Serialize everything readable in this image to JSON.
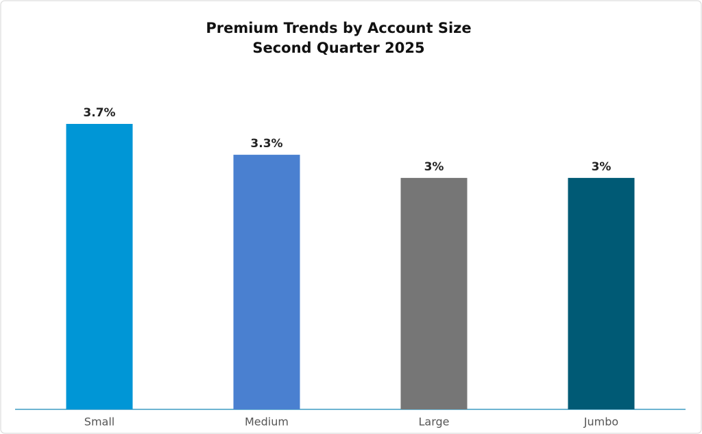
{
  "chart_data": {
    "type": "bar",
    "title": "Premium Trends by Account Size",
    "subtitle": "Second Quarter 2025",
    "categories": [
      "Small",
      "Medium",
      "Large",
      "Jumbo"
    ],
    "values": [
      3.7,
      3.3,
      3,
      3
    ],
    "value_labels": [
      "3.7%",
      "3.3%",
      "3%",
      "3%"
    ],
    "colors": [
      "#0096d6",
      "#4a80d0",
      "#767676",
      "#005a75"
    ]
  }
}
